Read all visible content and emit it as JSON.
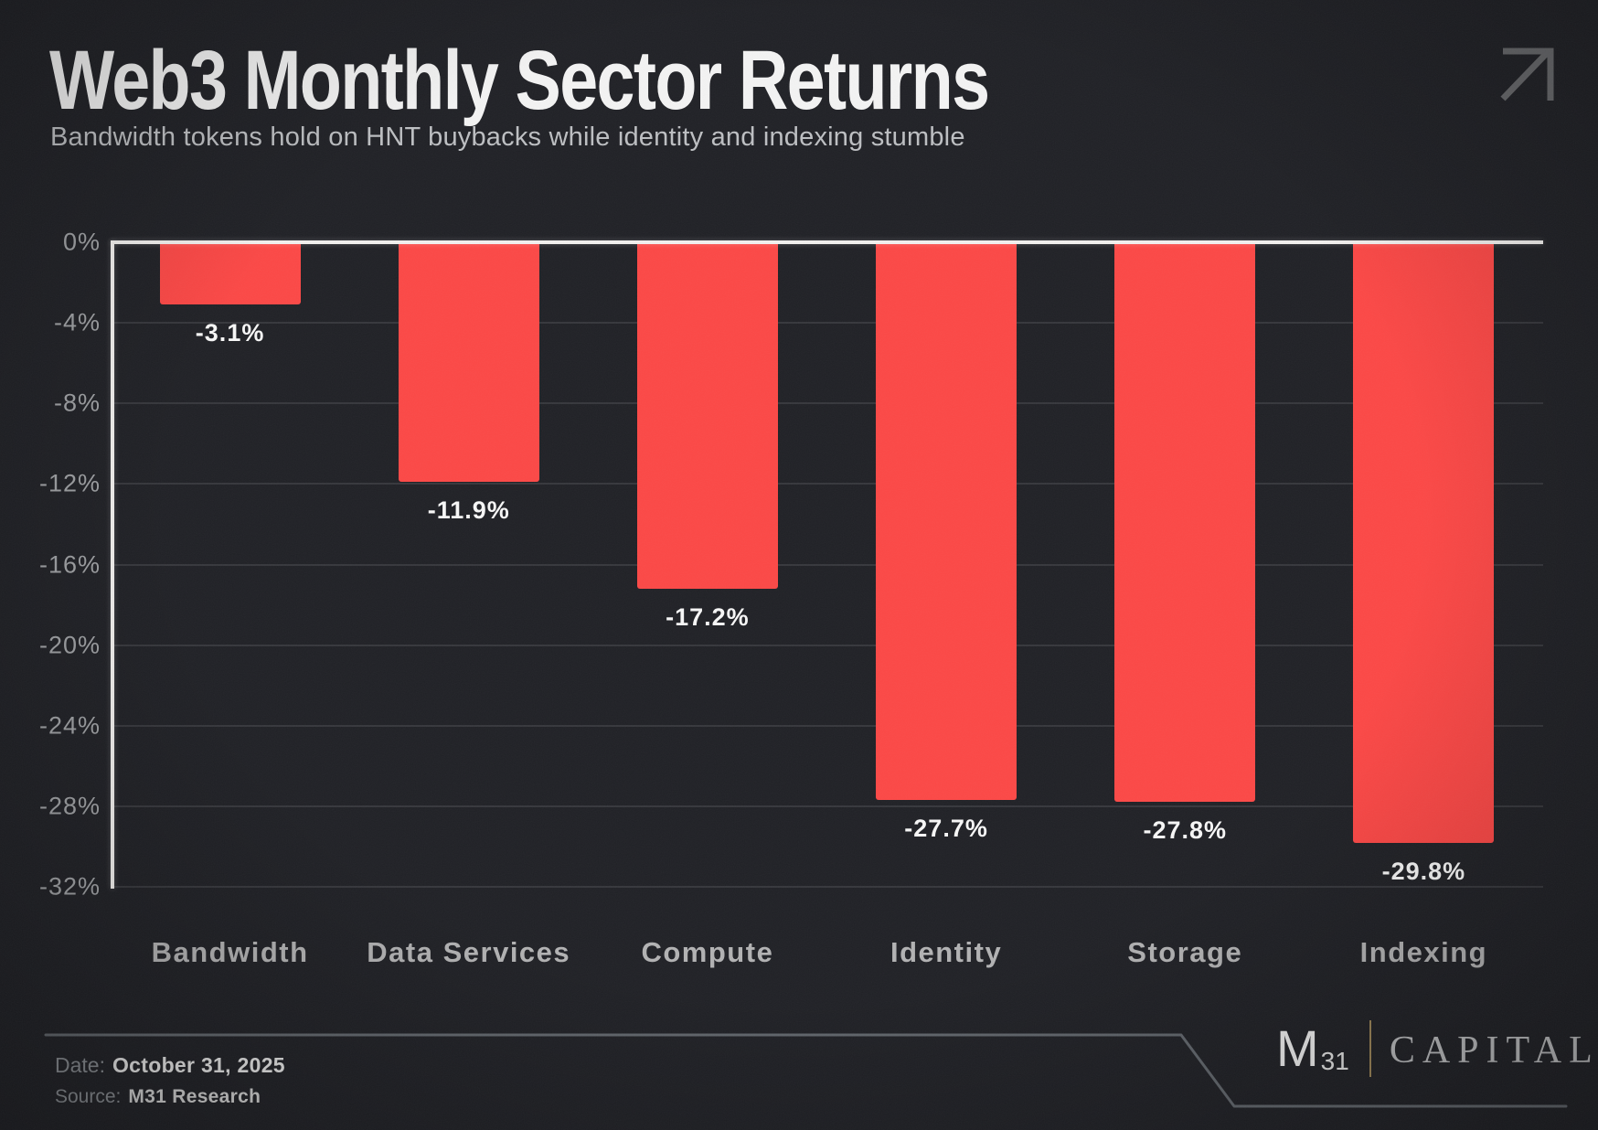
{
  "meta": {
    "background_color": "#202126",
    "bar_color": "#fc4846",
    "axis_color": "#f2f0ee",
    "accent_gold": "#9b8457"
  },
  "chart_data": {
    "type": "bar",
    "title": "Web3 Monthly Sector Returns",
    "subtitle": "Bandwidth tokens hold on HNT buybacks while identity and indexing stumble",
    "categories": [
      "Bandwidth",
      "Data Services",
      "Compute",
      "Identity",
      "Storage",
      "Indexing"
    ],
    "values": [
      -3.1,
      -11.9,
      -17.2,
      -27.7,
      -27.8,
      -29.8
    ],
    "value_labels": [
      "-3.1%",
      "-11.9%",
      "-17.2%",
      "-27.7%",
      "-27.8%",
      "-29.8%"
    ],
    "xlabel": "",
    "ylabel": "",
    "ylim": [
      -32,
      0
    ],
    "yticks": [
      0,
      -4,
      -8,
      -12,
      -16,
      -20,
      -24,
      -28,
      -32
    ],
    "ytick_labels": [
      "0%",
      "-4%",
      "-8%",
      "-12%",
      "-16%",
      "-20%",
      "-24%",
      "-28%",
      "-32%"
    ],
    "grid": true,
    "legend": false,
    "bar_color": "#fc4846"
  },
  "icons": {
    "top_right": "arrow-up-right"
  },
  "footer": {
    "date_label": "Date:",
    "date_value": "October 31, 2025",
    "source_label": "Source:",
    "source_value": "M31 Research"
  },
  "logo": {
    "m": "M",
    "subscript": "31",
    "name": "CAPITAL",
    "registered": "®"
  }
}
